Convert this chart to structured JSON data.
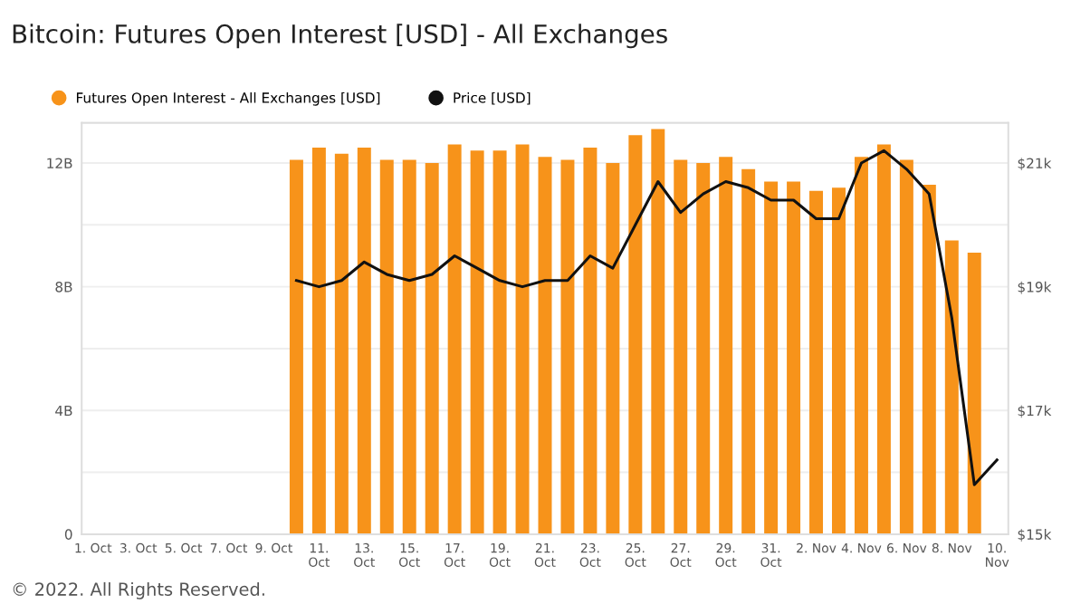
{
  "chart_data": {
    "type": "bar",
    "title": "Bitcoin: Futures Open Interest [USD] - All Exchanges",
    "annotations": [
      "© 2022. All Rights Reserved."
    ],
    "series": [
      {
        "name": "Futures Open Interest - All Exchanges [USD]",
        "color": "#f7931a",
        "x": [
          "2022-10-10",
          "2022-10-11",
          "2022-10-12",
          "2022-10-13",
          "2022-10-14",
          "2022-10-15",
          "2022-10-16",
          "2022-10-17",
          "2022-10-18",
          "2022-10-19",
          "2022-10-20",
          "2022-10-21",
          "2022-10-22",
          "2022-10-23",
          "2022-10-24",
          "2022-10-25",
          "2022-10-26",
          "2022-10-27",
          "2022-10-28",
          "2022-10-29",
          "2022-10-30",
          "2022-10-31",
          "2022-11-01",
          "2022-11-02",
          "2022-11-03",
          "2022-11-04",
          "2022-11-05",
          "2022-11-06",
          "2022-11-07",
          "2022-11-08",
          "2022-11-09"
        ],
        "values": [
          12.1,
          12.5,
          12.3,
          12.5,
          12.1,
          12.1,
          12.0,
          12.6,
          12.4,
          12.4,
          12.6,
          12.2,
          12.1,
          12.5,
          12.0,
          12.9,
          13.1,
          12.1,
          12.0,
          12.2,
          11.8,
          11.4,
          11.4,
          11.1,
          11.2,
          12.2,
          12.6,
          12.1,
          11.3,
          9.5,
          9.1
        ]
      },
      {
        "name": "Price [USD]",
        "type": "line",
        "axis": "y2",
        "color": "#111111",
        "x": [
          "2022-10-10",
          "2022-10-11",
          "2022-10-12",
          "2022-10-13",
          "2022-10-14",
          "2022-10-15",
          "2022-10-16",
          "2022-10-17",
          "2022-10-18",
          "2022-10-19",
          "2022-10-20",
          "2022-10-21",
          "2022-10-22",
          "2022-10-23",
          "2022-10-24",
          "2022-10-25",
          "2022-10-26",
          "2022-10-27",
          "2022-10-28",
          "2022-10-29",
          "2022-10-30",
          "2022-10-31",
          "2022-11-01",
          "2022-11-02",
          "2022-11-03",
          "2022-11-04",
          "2022-11-05",
          "2022-11-06",
          "2022-11-07",
          "2022-11-08",
          "2022-11-09",
          "2022-11-10"
        ],
        "values": [
          19.1,
          19.0,
          19.1,
          19.4,
          19.2,
          19.1,
          19.2,
          19.5,
          19.3,
          19.1,
          19.0,
          19.1,
          19.1,
          19.5,
          19.3,
          20.0,
          20.7,
          20.2,
          20.5,
          20.7,
          20.6,
          20.4,
          20.4,
          20.1,
          20.1,
          21.0,
          21.2,
          20.9,
          20.5,
          18.5,
          15.8,
          16.2
        ]
      }
    ],
    "xlim": [
      "2022-09-30T12:00",
      "2022-11-10T12:00"
    ],
    "xticks": [
      {
        "value": "2022-10-01",
        "label": "1. Oct"
      },
      {
        "value": "2022-10-03",
        "label": "3. Oct"
      },
      {
        "value": "2022-10-05",
        "label": "5. Oct"
      },
      {
        "value": "2022-10-07",
        "label": "7. Oct"
      },
      {
        "value": "2022-10-09",
        "label": "9. Oct"
      },
      {
        "value": "2022-10-11",
        "label": "11.\nOct"
      },
      {
        "value": "2022-10-13",
        "label": "13.\nOct"
      },
      {
        "value": "2022-10-15",
        "label": "15.\nOct"
      },
      {
        "value": "2022-10-17",
        "label": "17.\nOct"
      },
      {
        "value": "2022-10-19",
        "label": "19.\nOct"
      },
      {
        "value": "2022-10-21",
        "label": "21.\nOct"
      },
      {
        "value": "2022-10-23",
        "label": "23.\nOct"
      },
      {
        "value": "2022-10-25",
        "label": "25.\nOct"
      },
      {
        "value": "2022-10-27",
        "label": "27.\nOct"
      },
      {
        "value": "2022-10-29",
        "label": "29.\nOct"
      },
      {
        "value": "2022-10-31",
        "label": "31.\nOct"
      },
      {
        "value": "2022-11-02",
        "label": "2. Nov"
      },
      {
        "value": "2022-11-04",
        "label": "4. Nov"
      },
      {
        "value": "2022-11-06",
        "label": "6. Nov"
      },
      {
        "value": "2022-11-08",
        "label": "8. Nov"
      },
      {
        "value": "2022-11-10",
        "label": "10.\nNov"
      }
    ],
    "ylim": [
      0,
      13.3
    ],
    "yticks": [
      0,
      {
        "value": 2,
        "label": null
      },
      {
        "value": 4,
        "label": "4B"
      },
      {
        "value": 6,
        "label": null
      },
      {
        "value": 8,
        "label": "8B"
      },
      {
        "value": 10,
        "label": null
      },
      {
        "value": 12,
        "label": "12B"
      }
    ],
    "y2lim": [
      15,
      21.65
    ],
    "y2ticks": [
      {
        "value": 15,
        "label": "$15k"
      },
      {
        "value": 17,
        "label": "$17k"
      },
      {
        "value": 19,
        "label": "$19k"
      },
      {
        "value": 21,
        "label": "$21k"
      }
    ],
    "grid": "y",
    "legend": "top left",
    "marker": "none",
    "line_style": "solid"
  }
}
